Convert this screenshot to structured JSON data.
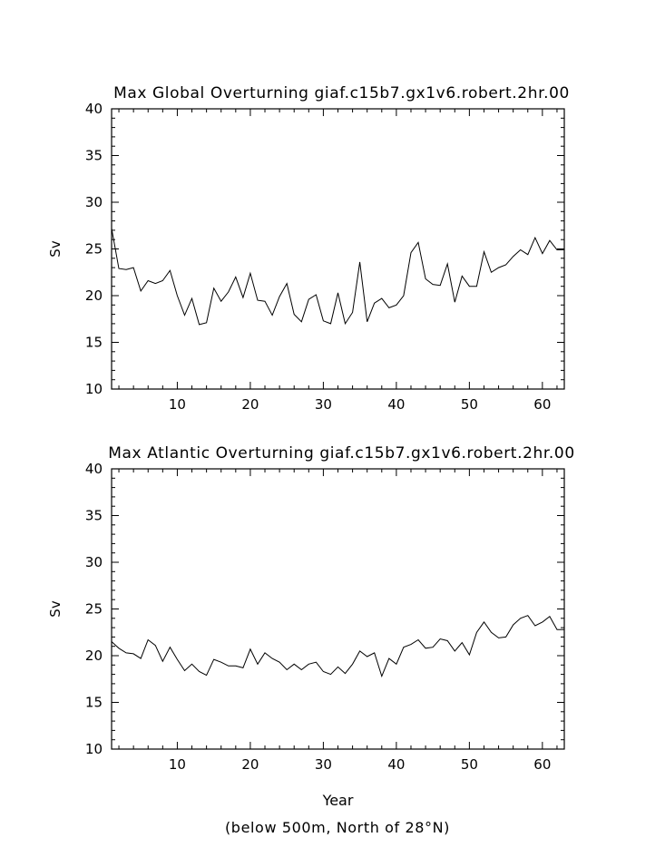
{
  "figure": {
    "footnote": "(below 500m, North of 28°N)"
  },
  "chart_data": [
    {
      "type": "line",
      "title": "Max Global Overturning giaf.c15b7.gx1v6.robert.2hr.00",
      "xlabel": "",
      "ylabel": "Sv",
      "xlim": [
        1,
        63
      ],
      "ylim": [
        10,
        40
      ],
      "x_ticks": [
        10,
        20,
        30,
        40,
        50,
        60
      ],
      "y_ticks": [
        10,
        15,
        20,
        25,
        30,
        35,
        40
      ],
      "grid": false,
      "line_color": "#000000",
      "series": [
        {
          "x": [
            1,
            2,
            3,
            4,
            5,
            6,
            7,
            8,
            9,
            10,
            11,
            12,
            13,
            14,
            15,
            16,
            17,
            18,
            19,
            20,
            21,
            22,
            23,
            24,
            25,
            26,
            27,
            28,
            29,
            30,
            31,
            32,
            33,
            34,
            35,
            36,
            37,
            38,
            39,
            40,
            41,
            42,
            43,
            44,
            45,
            46,
            47,
            48,
            49,
            50,
            51,
            52,
            53,
            54,
            55,
            56,
            57,
            58,
            59,
            60,
            61,
            62,
            63
          ],
          "values": [
            27.2,
            22.9,
            22.8,
            23.0,
            20.5,
            21.6,
            21.3,
            21.6,
            22.7,
            20.0,
            17.9,
            19.7,
            16.9,
            17.1,
            20.8,
            19.4,
            20.4,
            22.0,
            19.8,
            22.4,
            19.5,
            19.4,
            17.9,
            19.9,
            21.3,
            18.0,
            17.2,
            19.6,
            20.1,
            17.3,
            17.0,
            20.3,
            17.0,
            18.2,
            23.6,
            17.2,
            19.2,
            19.7,
            18.7,
            19.0,
            20.0,
            24.6,
            25.7,
            21.8,
            21.2,
            21.1,
            23.4,
            19.3,
            22.1,
            21.0,
            21.0,
            24.7,
            22.5,
            23.0,
            23.3,
            24.2,
            24.9,
            24.4,
            26.2,
            24.5,
            25.9,
            24.9,
            24.9
          ]
        }
      ]
    },
    {
      "type": "line",
      "title": "Max Atlantic Overturning giaf.c15b7.gx1v6.robert.2hr.00",
      "xlabel": "Year",
      "ylabel": "Sv",
      "xlim": [
        1,
        63
      ],
      "ylim": [
        10,
        40
      ],
      "x_ticks": [
        10,
        20,
        30,
        40,
        50,
        60
      ],
      "y_ticks": [
        10,
        15,
        20,
        25,
        30,
        35,
        40
      ],
      "grid": false,
      "line_color": "#000000",
      "series": [
        {
          "x": [
            1,
            2,
            3,
            4,
            5,
            6,
            7,
            8,
            9,
            10,
            11,
            12,
            13,
            14,
            15,
            16,
            17,
            18,
            19,
            20,
            21,
            22,
            23,
            24,
            25,
            26,
            27,
            28,
            29,
            30,
            31,
            32,
            33,
            34,
            35,
            36,
            37,
            38,
            39,
            40,
            41,
            42,
            43,
            44,
            45,
            46,
            47,
            48,
            49,
            50,
            51,
            52,
            53,
            54,
            55,
            56,
            57,
            58,
            59,
            60,
            61,
            62,
            63
          ],
          "values": [
            21.5,
            20.8,
            20.3,
            20.2,
            19.7,
            21.7,
            21.1,
            19.4,
            20.9,
            19.6,
            18.4,
            19.1,
            18.3,
            17.9,
            19.6,
            19.3,
            18.9,
            18.9,
            18.7,
            20.7,
            19.1,
            20.3,
            19.7,
            19.3,
            18.5,
            19.1,
            18.5,
            19.1,
            19.3,
            18.3,
            18.0,
            18.8,
            18.1,
            19.1,
            20.5,
            19.9,
            20.3,
            17.8,
            19.7,
            19.1,
            20.9,
            21.2,
            21.7,
            20.8,
            20.9,
            21.8,
            21.6,
            20.5,
            21.4,
            20.1,
            22.5,
            23.6,
            22.5,
            21.9,
            22.0,
            23.3,
            24.0,
            24.3,
            23.2,
            23.6,
            24.2,
            22.8,
            22.8
          ]
        }
      ]
    }
  ]
}
